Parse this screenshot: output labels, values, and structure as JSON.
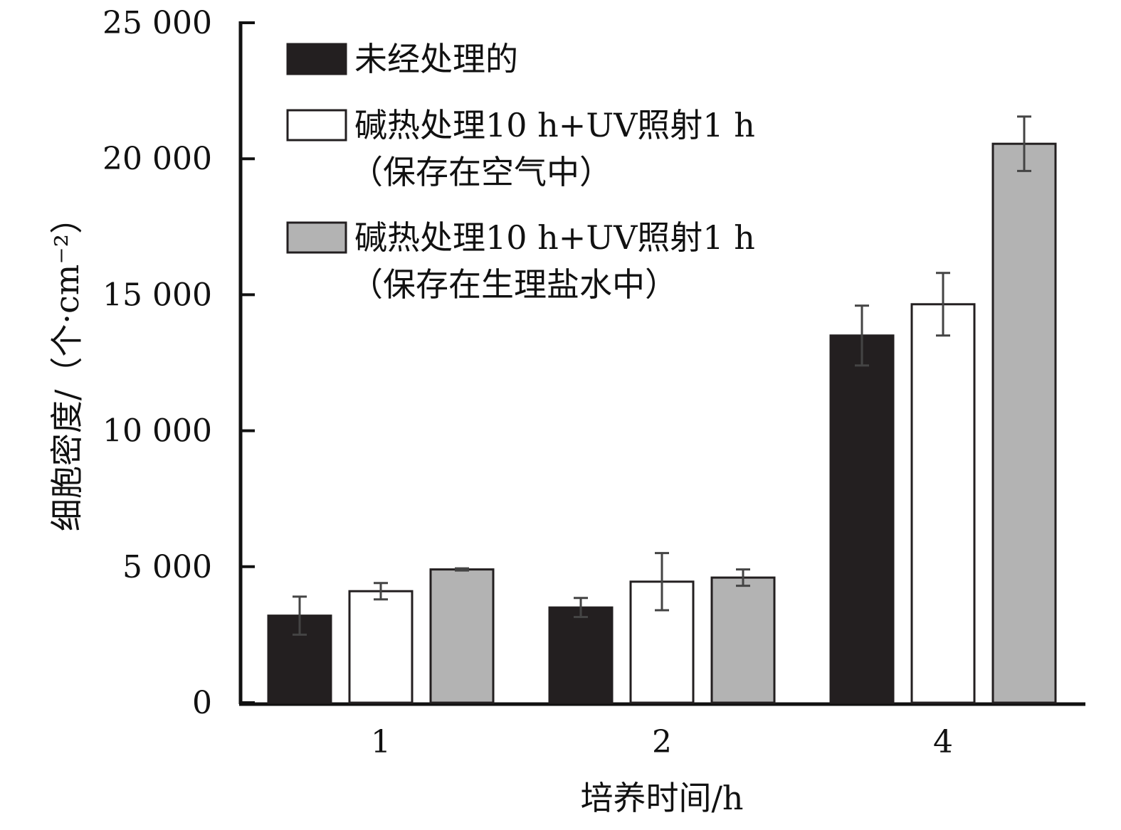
{
  "chart_data": {
    "type": "bar",
    "title": "",
    "xlabel": "培养时间/h",
    "ylabel": "细胞密度/（个·cm⁻²）",
    "ylim": [
      0,
      25000
    ],
    "yticks": [
      0,
      5000,
      10000,
      15000,
      20000,
      25000
    ],
    "ytick_labels": [
      "0",
      "5 000",
      "10 000",
      "15 000",
      "20 000",
      "25 000"
    ],
    "categories": [
      "1",
      "2",
      "4"
    ],
    "grid": false,
    "legend_position": "top-left",
    "series": [
      {
        "name_lines": [
          "未经处理的"
        ],
        "color": "#231f20",
        "values": [
          3200,
          3500,
          13500
        ],
        "errors": [
          700,
          350,
          1100
        ]
      },
      {
        "name_lines": [
          "碱热处理10 h+UV照射1 h",
          "（保存在空气中）"
        ],
        "color": "#ffffff",
        "values": [
          4100,
          4450,
          14650
        ],
        "errors": [
          300,
          1050,
          1150
        ]
      },
      {
        "name_lines": [
          "碱热处理10 h+UV照射1 h",
          "（保存在生理盐水中）"
        ],
        "color": "#b3b3b3",
        "values": [
          4900,
          4600,
          20550
        ],
        "errors": [
          40,
          300,
          1000
        ]
      }
    ]
  }
}
